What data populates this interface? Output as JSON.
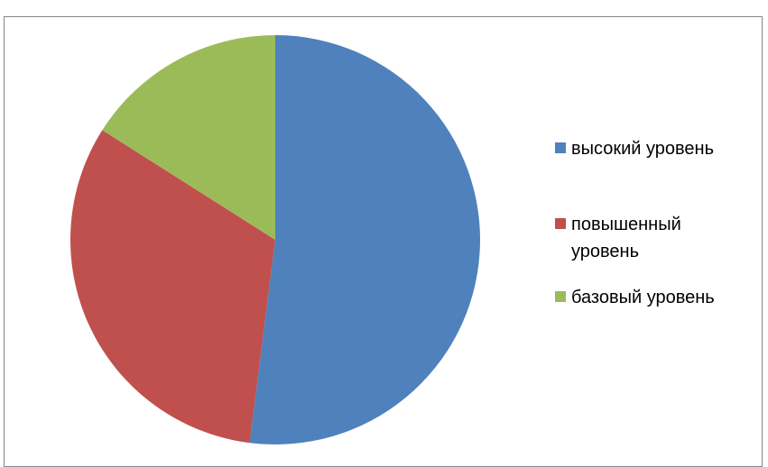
{
  "chart_data": {
    "type": "pie",
    "title": "",
    "slices": [
      {
        "label": "высокий уровень",
        "value": 52,
        "color": "#4F81BD"
      },
      {
        "label": "повышенный уровень",
        "value": 32,
        "color": "#C0504D"
      },
      {
        "label": "базовый уровень",
        "value": 16,
        "color": "#9BBB59"
      }
    ],
    "legend_position": "right"
  }
}
